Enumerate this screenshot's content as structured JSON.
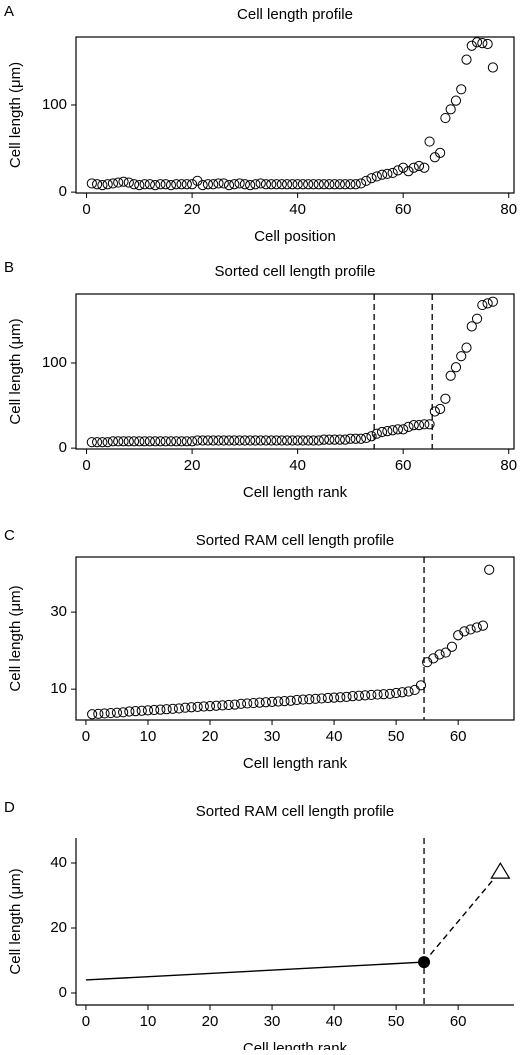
{
  "chart_data": [
    {
      "panel": "A",
      "type": "scatter",
      "title": "Cell length profile",
      "xlabel": "Cell position",
      "ylabel": "Cell length (μm)",
      "frame": "box",
      "xlim": [
        -2,
        81
      ],
      "ylim": [
        -1,
        178
      ],
      "xticks": [
        0,
        20,
        40,
        60,
        80
      ],
      "yticks": [
        0,
        100
      ],
      "vlines": [],
      "x": [
        1,
        2,
        3,
        4,
        5,
        6,
        7,
        8,
        9,
        10,
        11,
        12,
        13,
        14,
        15,
        16,
        17,
        18,
        19,
        20,
        21,
        22,
        23,
        24,
        25,
        26,
        27,
        28,
        29,
        30,
        31,
        32,
        33,
        34,
        35,
        36,
        37,
        38,
        39,
        40,
        41,
        42,
        43,
        44,
        45,
        46,
        47,
        48,
        49,
        50,
        51,
        52,
        53,
        54,
        55,
        56,
        57,
        58,
        59,
        60,
        61,
        62,
        63,
        64,
        65,
        66,
        67,
        68,
        69,
        70,
        71,
        72,
        73,
        74,
        75,
        76,
        77
      ],
      "values": [
        10,
        9,
        8,
        9,
        10,
        11,
        12,
        11,
        9,
        8,
        9,
        9,
        8,
        9,
        9,
        8,
        9,
        9,
        9,
        9,
        13,
        8,
        9,
        9,
        10,
        10,
        8,
        9,
        10,
        9,
        8,
        9,
        10,
        9,
        9,
        9,
        9,
        9,
        9,
        9,
        9,
        9,
        9,
        9,
        9,
        9,
        9,
        9,
        9,
        9,
        9,
        10,
        13,
        16,
        18,
        20,
        21,
        22,
        25,
        28,
        24,
        28,
        30,
        28,
        58,
        40,
        45,
        85,
        95,
        105,
        118,
        152,
        168,
        172,
        171,
        170,
        143
      ]
    },
    {
      "panel": "B",
      "type": "scatter",
      "title": "Sorted cell length profile",
      "xlabel": "Cell length rank",
      "ylabel": "Cell length (μm)",
      "frame": "box",
      "xlim": [
        -2,
        81
      ],
      "ylim": [
        -1,
        181
      ],
      "xticks": [
        0,
        20,
        40,
        60,
        80
      ],
      "yticks": [
        0,
        100
      ],
      "vlines": [
        54.5,
        65.5
      ],
      "x": [
        1,
        2,
        3,
        4,
        5,
        6,
        7,
        8,
        9,
        10,
        11,
        12,
        13,
        14,
        15,
        16,
        17,
        18,
        19,
        20,
        21,
        22,
        23,
        24,
        25,
        26,
        27,
        28,
        29,
        30,
        31,
        32,
        33,
        34,
        35,
        36,
        37,
        38,
        39,
        40,
        41,
        42,
        43,
        44,
        45,
        46,
        47,
        48,
        49,
        50,
        51,
        52,
        53,
        54,
        55,
        56,
        57,
        58,
        59,
        60,
        61,
        62,
        63,
        64,
        65,
        66,
        67,
        68,
        69,
        70,
        71,
        72,
        73,
        74,
        75,
        76,
        77
      ],
      "values": [
        7,
        7,
        7,
        7,
        8,
        8,
        8,
        8,
        8,
        8,
        8,
        8,
        8,
        8,
        8,
        8,
        8,
        8,
        8,
        8,
        9,
        9,
        9,
        9,
        9,
        9,
        9,
        9,
        9,
        9,
        9,
        9,
        9,
        9,
        9,
        9,
        9,
        9,
        9,
        9,
        9,
        9,
        9,
        9,
        10,
        10,
        10,
        10,
        10,
        11,
        11,
        11,
        12,
        14,
        17,
        19,
        20,
        21,
        22,
        22,
        25,
        27,
        27,
        28,
        28,
        43,
        46,
        58,
        85,
        95,
        108,
        118,
        143,
        152,
        168,
        170,
        172
      ]
    },
    {
      "panel": "C",
      "type": "scatter",
      "title": "Sorted RAM cell length profile",
      "xlabel": "Cell length rank",
      "ylabel": "Cell length (μm)",
      "frame": "box",
      "xlim": [
        -1.6,
        69
      ],
      "ylim": [
        2,
        44.3
      ],
      "xticks": [
        0,
        10,
        20,
        30,
        40,
        50,
        60
      ],
      "yticks": [
        10,
        30
      ],
      "vlines": [
        54.5
      ],
      "x": [
        1,
        2,
        3,
        4,
        5,
        6,
        7,
        8,
        9,
        10,
        11,
        12,
        13,
        14,
        15,
        16,
        17,
        18,
        19,
        20,
        21,
        22,
        23,
        24,
        25,
        26,
        27,
        28,
        29,
        30,
        31,
        32,
        33,
        34,
        35,
        36,
        37,
        38,
        39,
        40,
        41,
        42,
        43,
        44,
        45,
        46,
        47,
        48,
        49,
        50,
        51,
        52,
        53,
        54,
        55,
        56,
        57,
        58,
        59,
        60,
        61,
        62,
        63,
        64,
        65
      ],
      "values": [
        3.5,
        3.6,
        3.7,
        3.8,
        3.9,
        4.0,
        4.2,
        4.3,
        4.4,
        4.5,
        4.6,
        4.7,
        4.8,
        4.9,
        5.0,
        5.2,
        5.3,
        5.4,
        5.5,
        5.6,
        5.7,
        5.8,
        5.9,
        6.0,
        6.2,
        6.3,
        6.4,
        6.5,
        6.6,
        6.7,
        6.8,
        6.9,
        7.0,
        7.2,
        7.3,
        7.4,
        7.5,
        7.6,
        7.7,
        7.8,
        7.9,
        8.0,
        8.2,
        8.3,
        8.4,
        8.5,
        8.6,
        8.7,
        8.8,
        9.0,
        9.2,
        9.4,
        9.8,
        11,
        17,
        18,
        19,
        19.5,
        21,
        24,
        25,
        25.5,
        26,
        26.5,
        41
      ]
    },
    {
      "panel": "D",
      "type": "model",
      "title": "Sorted RAM cell length profile",
      "xlabel": "Cell length rank",
      "ylabel": "Cell length (μm)",
      "frame": "open",
      "xlim": [
        -1.6,
        69
      ],
      "ylim": [
        -3.7,
        47.7
      ],
      "xticks": [
        0,
        10,
        20,
        30,
        40,
        50,
        60
      ],
      "yticks": [
        0,
        20,
        40
      ],
      "vlines": [
        54.5
      ],
      "lines": [
        {
          "x": [
            0,
            54.5
          ],
          "values": [
            4,
            9.5
          ],
          "dashed": false
        },
        {
          "x": [
            54.5,
            66.8
          ],
          "values": [
            9.5,
            37.5
          ],
          "dashed": true
        }
      ],
      "points": [
        {
          "x": 54.5,
          "value": 9.5,
          "marker": "filled-circle"
        },
        {
          "x": 66.8,
          "value": 37.5,
          "marker": "open-triangle"
        }
      ]
    }
  ]
}
